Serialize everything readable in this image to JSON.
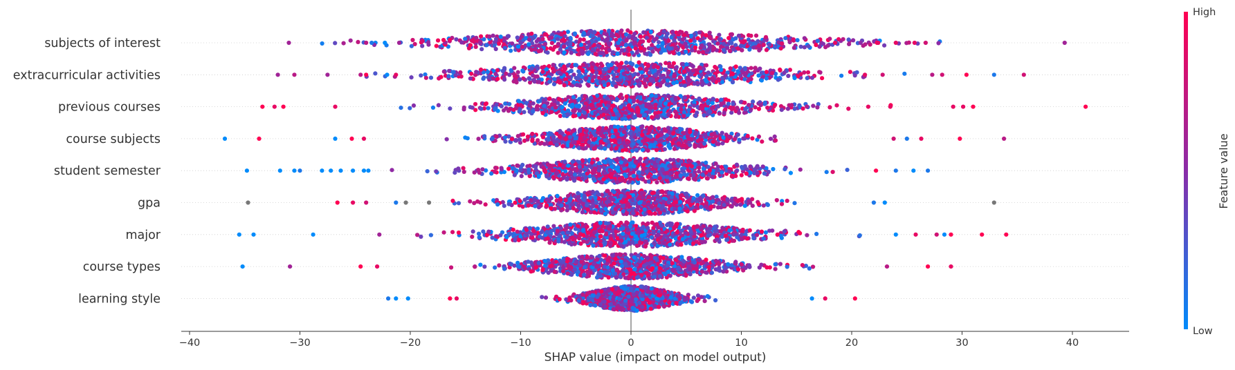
{
  "chart_data": {
    "type": "scatter",
    "subtype": "shap-beeswarm",
    "title": "",
    "xlabel": "SHAP value (impact on model output)",
    "ylabel": "",
    "xlim": [
      -41,
      45
    ],
    "xticks": [
      -40,
      -30,
      -20,
      -10,
      0,
      10,
      20,
      30,
      40
    ],
    "zero_line": 0,
    "grid": "dotted horizontal row guides",
    "colorbar": {
      "title": "Feature value",
      "high_label": "High",
      "low_label": "Low",
      "high_color": "#ff0052",
      "low_color": "#008bfb",
      "mid_color": "#8a2ca8",
      "missing_color": "#777777",
      "position": "right"
    },
    "features": [
      {
        "name": "subjects of interest",
        "range": [
          -31,
          39.5
        ],
        "core_width": 9,
        "outliers": [
          {
            "x": -31,
            "v": 0.6
          },
          {
            "x": -24,
            "v": 0.7
          },
          {
            "x": -23.5,
            "v": 0.1
          },
          {
            "x": -22.3,
            "v": 0.0
          },
          {
            "x": -21,
            "v": 0.6
          },
          {
            "x": 18.5,
            "v": 0.9
          },
          {
            "x": 20.8,
            "v": 0.5
          },
          {
            "x": 22.3,
            "v": 1.0
          },
          {
            "x": 22.4,
            "v": 0.9
          },
          {
            "x": 24,
            "v": 0.9
          },
          {
            "x": 25.7,
            "v": 0.9
          },
          {
            "x": 26.7,
            "v": 0.8
          },
          {
            "x": 39.3,
            "v": 0.6
          }
        ]
      },
      {
        "name": "extracurricular activities",
        "range": [
          -32,
          36
        ],
        "core_width": 8,
        "outliers": [
          {
            "x": -32,
            "v": 0.6
          },
          {
            "x": -30.5,
            "v": 0.7
          },
          {
            "x": -27.5,
            "v": 0.6
          },
          {
            "x": -24.5,
            "v": 0.7
          },
          {
            "x": -24,
            "v": 1.0
          },
          {
            "x": -22.1,
            "v": 0.0
          },
          {
            "x": -21.3,
            "v": 0.9
          },
          {
            "x": 21.2,
            "v": 0.9
          },
          {
            "x": 22.8,
            "v": 0.8
          },
          {
            "x": 27.3,
            "v": 0.7
          },
          {
            "x": 28.2,
            "v": 0.8
          },
          {
            "x": 30.4,
            "v": 1.0
          },
          {
            "x": 32.9,
            "v": 0.1
          },
          {
            "x": 35.6,
            "v": 0.8
          }
        ]
      },
      {
        "name": "previous courses",
        "range": [
          -33.5,
          41.5
        ],
        "core_width": 6.5,
        "outliers": [
          {
            "x": -33.4,
            "v": 1.0
          },
          {
            "x": -32.3,
            "v": 0.9
          },
          {
            "x": -31.5,
            "v": 1.0
          },
          {
            "x": -26.8,
            "v": 0.9
          },
          {
            "x": 21.5,
            "v": 0.9
          },
          {
            "x": 23.5,
            "v": 0.9
          },
          {
            "x": 29.2,
            "v": 0.9
          },
          {
            "x": 30.1,
            "v": 0.9
          },
          {
            "x": 31.0,
            "v": 1.0
          },
          {
            "x": 41.2,
            "v": 1.0
          }
        ]
      },
      {
        "name": "course subjects",
        "range": [
          -37,
          34
        ],
        "core_width": 5,
        "outliers": [
          {
            "x": -36.8,
            "v": 0.0
          },
          {
            "x": -33.7,
            "v": 1.0
          },
          {
            "x": -26.8,
            "v": 0.0
          },
          {
            "x": -25.3,
            "v": 1.0
          },
          {
            "x": -24.2,
            "v": 0.9
          },
          {
            "x": 23.8,
            "v": 0.8
          },
          {
            "x": 25.0,
            "v": 0.1
          },
          {
            "x": 26.3,
            "v": 0.9
          },
          {
            "x": 29.8,
            "v": 1.0
          },
          {
            "x": 33.8,
            "v": 0.7
          }
        ]
      },
      {
        "name": "student semester",
        "range": [
          -35,
          27
        ],
        "core_width": 6,
        "outliers": [
          {
            "x": -34.8,
            "v": 0.0
          },
          {
            "x": -31.8,
            "v": 0.0
          },
          {
            "x": -30.5,
            "v": 0.0
          },
          {
            "x": -30.0,
            "v": 0.1
          },
          {
            "x": -28.0,
            "v": 0.0
          },
          {
            "x": -27.2,
            "v": 0.0
          },
          {
            "x": -26.3,
            "v": 0.0
          },
          {
            "x": -25.2,
            "v": 0.0
          },
          {
            "x": -24.2,
            "v": 0.0
          },
          {
            "x": -23.8,
            "v": 0.0
          },
          {
            "x": 22.2,
            "v": 1.0
          },
          {
            "x": 24.0,
            "v": 0.1
          },
          {
            "x": 25.6,
            "v": 0.0
          },
          {
            "x": 26.9,
            "v": 0.1
          }
        ]
      },
      {
        "name": "gpa",
        "range": [
          -35,
          33
        ],
        "core_width": 5,
        "outliers": [
          {
            "x": -34.7,
            "v": -1
          },
          {
            "x": -26.6,
            "v": 1.0
          },
          {
            "x": -25.2,
            "v": 0.9
          },
          {
            "x": -24.0,
            "v": 0.8
          },
          {
            "x": -21.3,
            "v": 0.1
          },
          {
            "x": -20.4,
            "v": -1
          },
          {
            "x": -18.3,
            "v": -1
          },
          {
            "x": 22.0,
            "v": 0.1
          },
          {
            "x": 23.0,
            "v": 0.0
          },
          {
            "x": 32.9,
            "v": -1
          }
        ]
      },
      {
        "name": "major",
        "range": [
          -35.5,
          34
        ],
        "core_width": 6.5,
        "outliers": [
          {
            "x": -35.5,
            "v": 0.0
          },
          {
            "x": -34.2,
            "v": 0.0
          },
          {
            "x": -28.8,
            "v": 0.0
          },
          {
            "x": -22.8,
            "v": 0.6
          },
          {
            "x": 24.0,
            "v": 0.0
          },
          {
            "x": 25.8,
            "v": 0.9
          },
          {
            "x": 27.7,
            "v": 0.8
          },
          {
            "x": 28.4,
            "v": 0.0
          },
          {
            "x": 29.0,
            "v": 1.0
          },
          {
            "x": 31.8,
            "v": 1.0
          },
          {
            "x": 34.0,
            "v": 1.0
          }
        ]
      },
      {
        "name": "course types",
        "range": [
          -35.3,
          29
        ],
        "core_width": 5,
        "outliers": [
          {
            "x": -35.2,
            "v": 0.0
          },
          {
            "x": -30.9,
            "v": 0.6
          },
          {
            "x": -24.5,
            "v": 1.0
          },
          {
            "x": -23.0,
            "v": 0.9
          },
          {
            "x": 23.2,
            "v": 0.7
          },
          {
            "x": 26.9,
            "v": 1.0
          },
          {
            "x": 29.0,
            "v": 0.9
          }
        ]
      },
      {
        "name": "learning style",
        "range": [
          -22,
          20.5
        ],
        "core_width": 2.5,
        "outliers": [
          {
            "x": -22.0,
            "v": 0.1
          },
          {
            "x": -21.3,
            "v": 0.0
          },
          {
            "x": -20.2,
            "v": 0.0
          },
          {
            "x": -16.4,
            "v": 1.0
          },
          {
            "x": -15.8,
            "v": 0.9
          },
          {
            "x": 16.4,
            "v": 0.0
          },
          {
            "x": 17.6,
            "v": 0.9
          },
          {
            "x": 20.3,
            "v": 1.0
          }
        ]
      }
    ]
  }
}
